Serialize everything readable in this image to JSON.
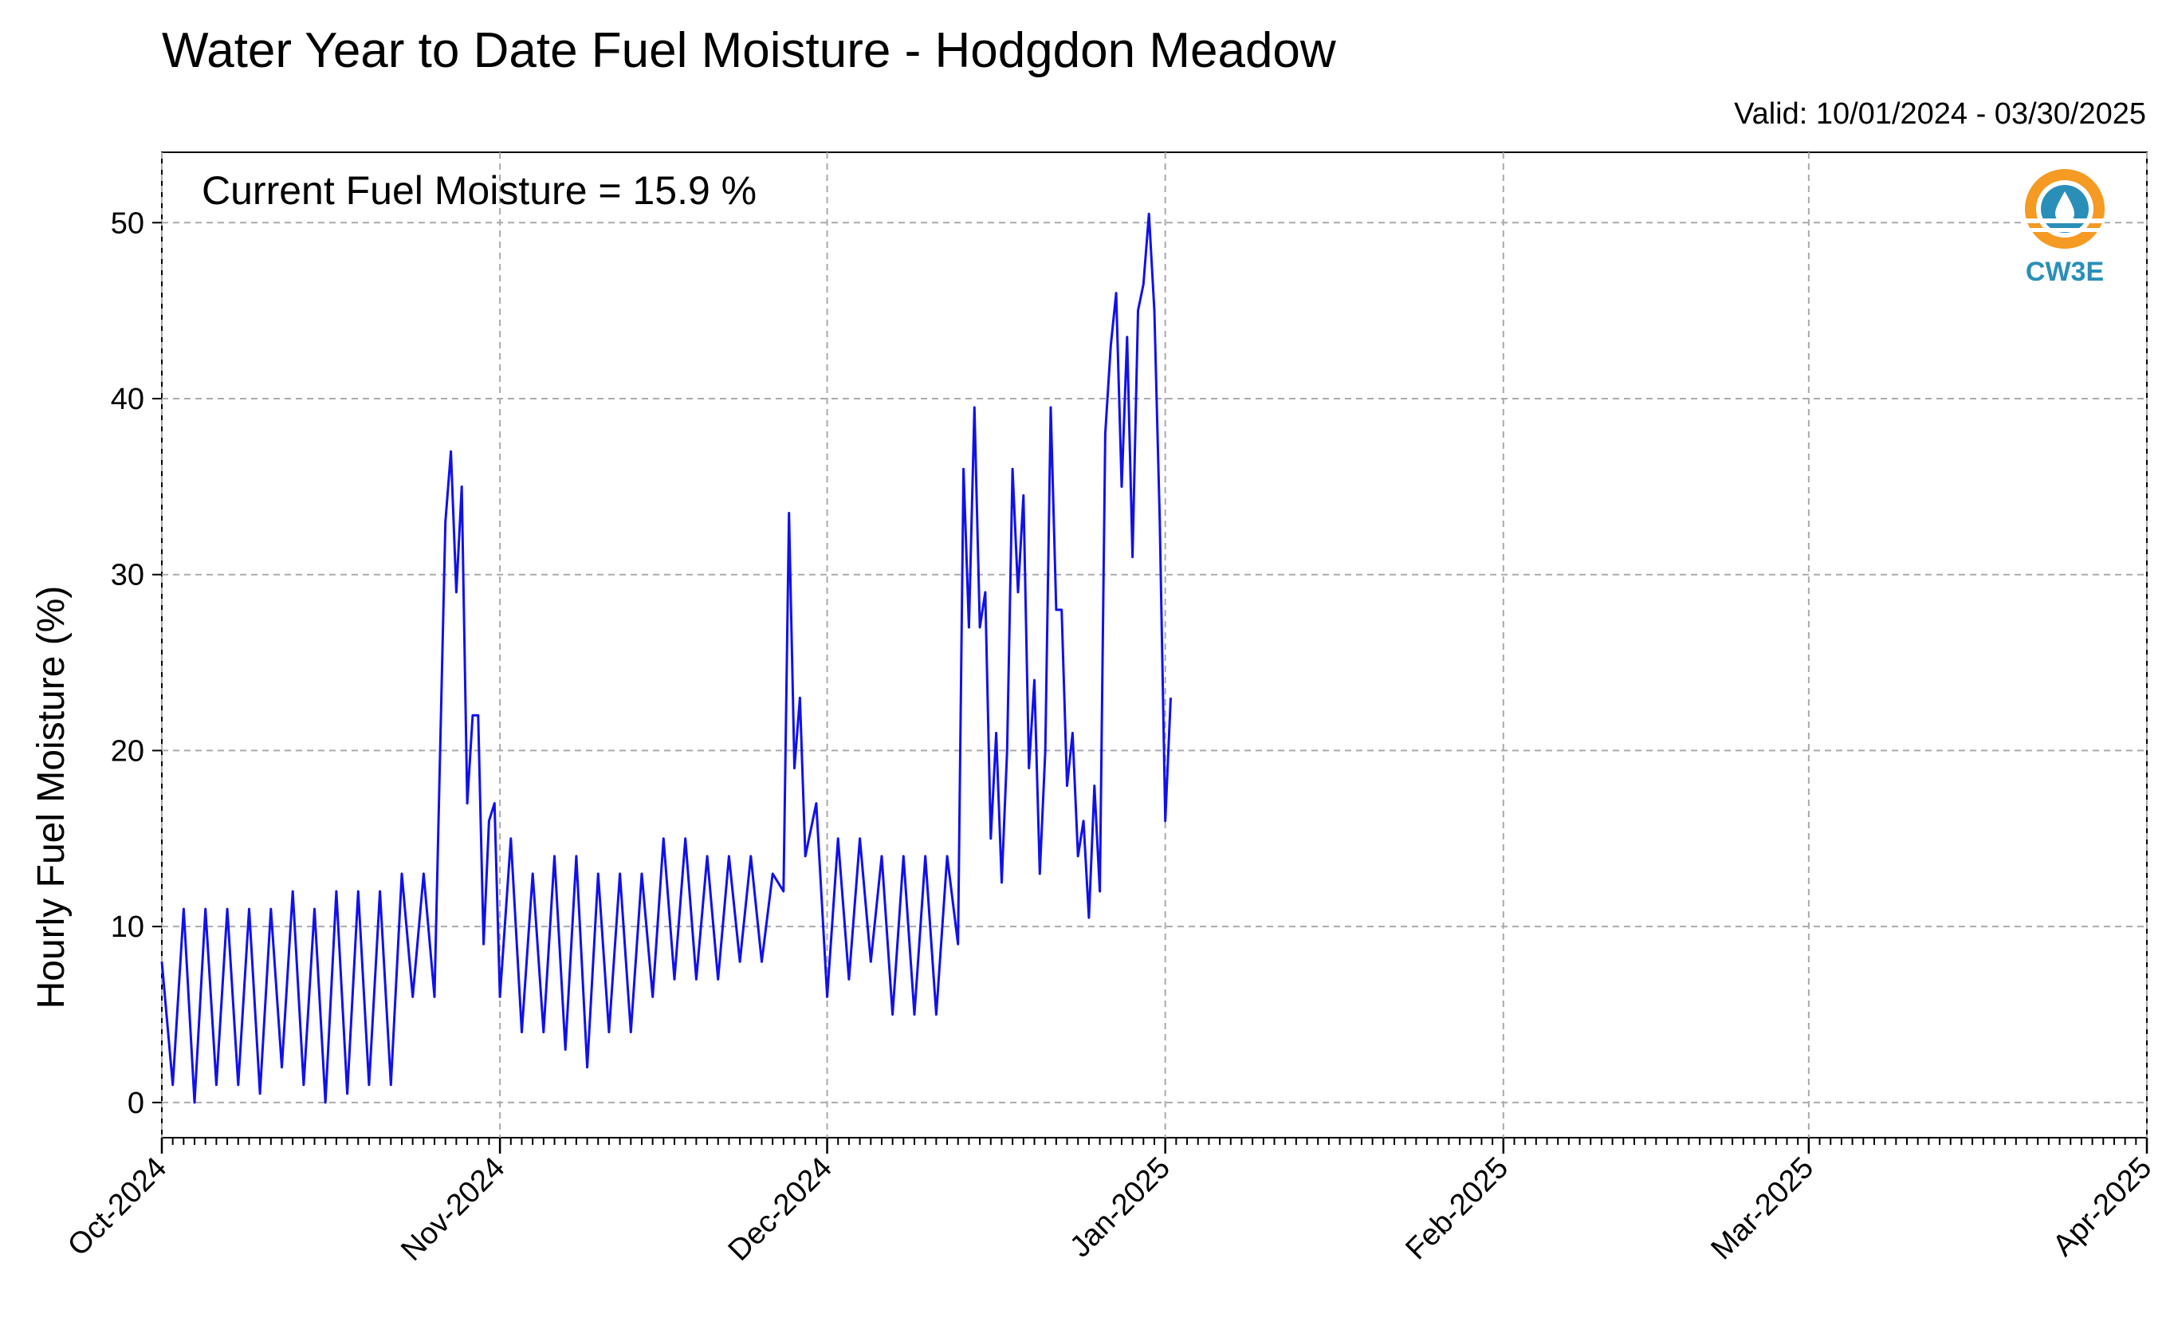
{
  "chart_data": {
    "type": "line",
    "title": "Water Year to Date Fuel Moisture - Hodgdon Meadow",
    "subtitle": "Valid: 10/01/2024 - 03/30/2025",
    "ylabel": "Hourly Fuel Moisture (%)",
    "annotation": "Current Fuel Moisture = 15.9 %",
    "logo_text": "CW3E",
    "x_range": [
      "2024-10-01",
      "2025-04-01"
    ],
    "ylim": [
      -2,
      54
    ],
    "y_ticks": [
      0,
      10,
      20,
      30,
      40,
      50
    ],
    "x_ticks": [
      {
        "date": "2024-10-01",
        "label": "Oct-2024"
      },
      {
        "date": "2024-11-01",
        "label": "Nov-2024"
      },
      {
        "date": "2024-12-01",
        "label": "Dec-2024"
      },
      {
        "date": "2025-01-01",
        "label": "Jan-2025"
      },
      {
        "date": "2025-02-01",
        "label": "Feb-2025"
      },
      {
        "date": "2025-03-01",
        "label": "Mar-2025"
      },
      {
        "date": "2025-04-01",
        "label": "Apr-2025"
      }
    ],
    "grid": true,
    "line_color": "#1010ee",
    "series": [
      {
        "name": "",
        "segments": [
          [
            [
              "2024-10-01",
              8
            ],
            [
              "2024-10-02",
              1
            ],
            [
              "2024-10-03",
              11
            ],
            [
              "2024-10-04",
              0
            ],
            [
              "2024-10-05",
              11
            ],
            [
              "2024-10-06",
              1
            ],
            [
              "2024-10-07",
              11
            ],
            [
              "2024-10-08",
              1
            ],
            [
              "2024-10-09",
              11
            ],
            [
              "2024-10-10",
              0.5
            ],
            [
              "2024-10-11",
              11
            ],
            [
              "2024-10-12",
              2
            ],
            [
              "2024-10-13",
              12
            ],
            [
              "2024-10-14",
              1
            ],
            [
              "2024-10-15",
              11
            ],
            [
              "2024-10-16",
              0
            ],
            [
              "2024-10-17",
              12
            ],
            [
              "2024-10-18",
              0.5
            ],
            [
              "2024-10-19",
              12
            ],
            [
              "2024-10-20",
              1
            ],
            [
              "2024-10-21",
              12
            ],
            [
              "2024-10-22",
              1
            ],
            [
              "2024-10-23",
              13
            ],
            [
              "2024-10-24",
              6
            ],
            [
              "2024-10-25",
              13
            ],
            [
              "2024-10-26",
              6
            ],
            [
              "2024-10-27",
              33
            ],
            [
              "2024-10-27T12",
              37
            ],
            [
              "2024-10-28",
              29
            ],
            [
              "2024-10-28T12",
              35
            ],
            [
              "2024-10-29",
              17
            ],
            [
              "2024-10-29T12",
              22
            ],
            [
              "2024-10-30",
              22
            ],
            [
              "2024-10-30T12",
              9
            ],
            [
              "2024-10-31",
              16
            ],
            [
              "2024-10-31T12",
              17
            ],
            [
              "2024-11-01",
              6
            ],
            [
              "2024-11-02",
              15
            ],
            [
              "2024-11-03",
              4
            ],
            [
              "2024-11-04",
              13
            ],
            [
              "2024-11-05",
              4
            ],
            [
              "2024-11-06",
              14
            ],
            [
              "2024-11-07",
              3
            ],
            [
              "2024-11-08",
              14
            ],
            [
              "2024-11-09",
              2
            ],
            [
              "2024-11-10",
              13
            ],
            [
              "2024-11-11",
              4
            ],
            [
              "2024-11-12",
              13
            ],
            [
              "2024-11-13",
              4
            ],
            [
              "2024-11-14",
              13
            ],
            [
              "2024-11-15",
              6
            ],
            [
              "2024-11-16",
              15
            ],
            [
              "2024-11-17",
              7
            ],
            [
              "2024-11-18",
              15
            ],
            [
              "2024-11-19",
              7
            ],
            [
              "2024-11-20",
              14
            ],
            [
              "2024-11-21",
              7
            ],
            [
              "2024-11-22",
              14
            ],
            [
              "2024-11-23",
              8
            ],
            [
              "2024-11-24",
              14
            ],
            [
              "2024-11-25",
              8
            ],
            [
              "2024-11-26",
              13
            ],
            [
              "2024-11-27",
              12
            ],
            [
              "2024-11-27T12",
              33.5
            ],
            [
              "2024-11-28",
              19
            ],
            [
              "2024-11-28T12",
              23
            ],
            [
              "2024-11-29",
              14
            ],
            [
              "2024-11-30",
              17
            ],
            [
              "2024-12-01",
              6
            ],
            [
              "2024-12-02",
              15
            ],
            [
              "2024-12-03",
              7
            ],
            [
              "2024-12-04",
              15
            ],
            [
              "2024-12-05",
              8
            ],
            [
              "2024-12-06",
              14
            ],
            [
              "2024-12-07",
              5
            ],
            [
              "2024-12-08",
              14
            ],
            [
              "2024-12-09",
              5
            ],
            [
              "2024-12-10",
              14
            ],
            [
              "2024-12-11",
              5
            ],
            [
              "2024-12-12",
              14
            ],
            [
              "2024-12-13",
              9
            ],
            [
              "2024-12-13T12",
              36
            ],
            [
              "2024-12-14",
              27
            ],
            [
              "2024-12-14T12",
              39.5
            ],
            [
              "2024-12-15",
              27
            ],
            [
              "2024-12-15T12",
              29
            ],
            [
              "2024-12-16",
              15
            ],
            [
              "2024-12-16T12",
              21
            ],
            [
              "2024-12-17",
              12.5
            ],
            [
              "2024-12-17T12",
              20
            ],
            [
              "2024-12-18",
              36
            ],
            [
              "2024-12-18T12",
              29
            ],
            [
              "2024-12-19",
              34.5
            ],
            [
              "2024-12-19T12",
              19
            ],
            [
              "2024-12-20",
              24
            ],
            [
              "2024-12-20T12",
              13
            ],
            [
              "2024-12-21",
              20
            ],
            [
              "2024-12-21T12",
              39.5
            ],
            [
              "2024-12-22",
              28
            ],
            [
              "2024-12-22T12",
              28
            ],
            [
              "2024-12-23",
              18
            ],
            [
              "2024-12-23T12",
              21
            ],
            [
              "2024-12-24",
              14
            ],
            [
              "2024-12-24T12",
              16
            ],
            [
              "2024-12-25",
              10.5
            ],
            [
              "2024-12-25T12",
              18
            ],
            [
              "2024-12-26",
              12
            ],
            [
              "2024-12-26T12",
              38
            ],
            [
              "2024-12-27",
              43
            ],
            [
              "2024-12-27T12",
              46
            ],
            [
              "2024-12-28",
              35
            ],
            [
              "2024-12-28T12",
              43.5
            ],
            [
              "2024-12-29",
              31
            ],
            [
              "2024-12-29T12",
              45
            ],
            [
              "2024-12-30",
              46.5
            ],
            [
              "2024-12-30T12",
              50.5
            ],
            [
              "2024-12-31",
              45
            ],
            [
              "2024-12-31T12",
              33
            ],
            [
              "2025-01-01",
              16
            ],
            [
              "2025-01-01T12",
              23
            ]
          ]
        ]
      }
    ]
  }
}
